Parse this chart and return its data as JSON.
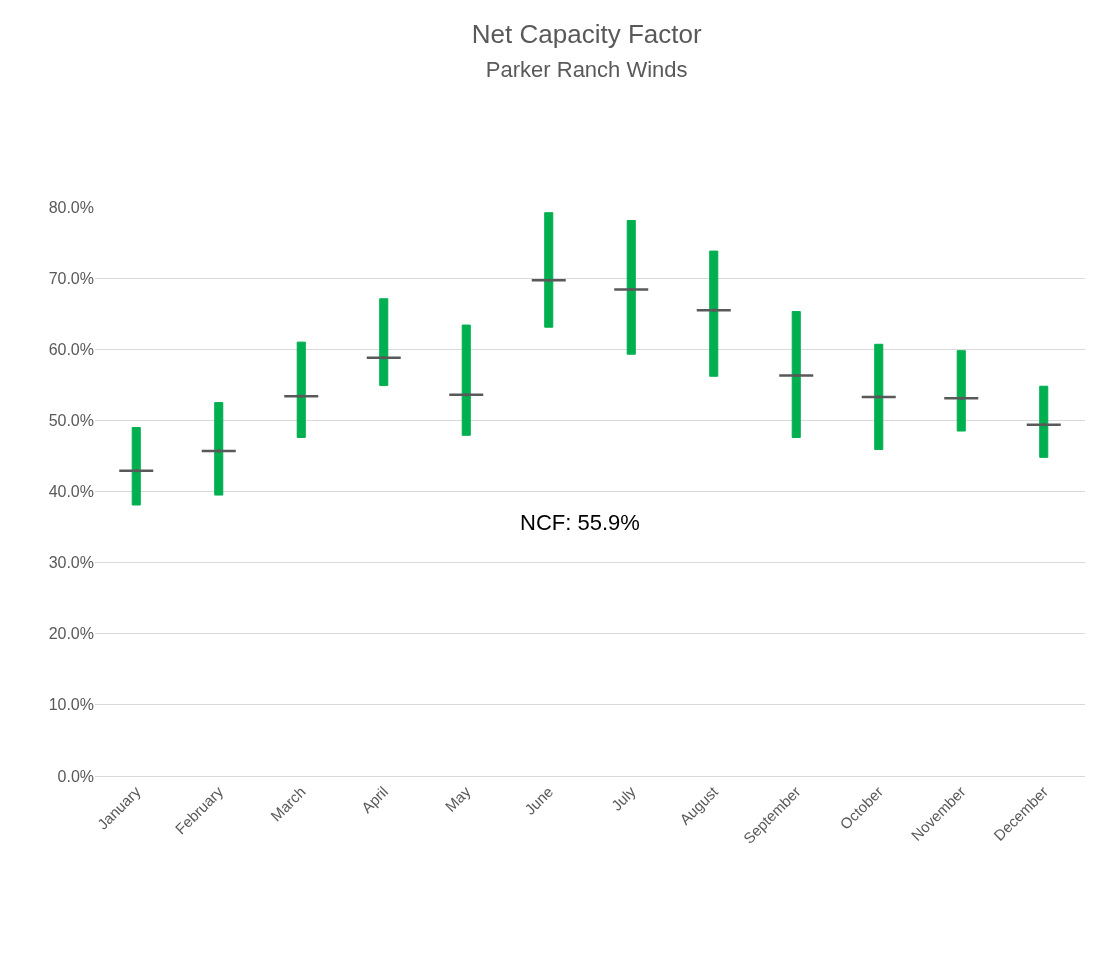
{
  "chart_data": {
    "type": "candlestick",
    "title": "Net Capacity Factor",
    "subtitle": "Parker Ranch Winds",
    "categories": [
      "January",
      "February",
      "March",
      "April",
      "May",
      "June",
      "July",
      "August",
      "September",
      "October",
      "November",
      "December"
    ],
    "ohlc": [
      [
        38.1,
        49.0,
        38.1,
        49.0
      ],
      [
        39.5,
        52.5,
        39.5,
        52.5
      ],
      [
        47.6,
        61.0,
        47.6,
        61.0
      ],
      [
        54.9,
        67.1,
        54.9,
        67.1
      ],
      [
        47.9,
        63.4,
        47.9,
        63.4
      ],
      [
        63.1,
        79.2,
        63.1,
        79.2
      ],
      [
        59.3,
        78.1,
        59.3,
        78.1
      ],
      [
        56.2,
        73.8,
        56.2,
        73.8
      ],
      [
        47.6,
        65.3,
        47.6,
        65.3
      ],
      [
        45.9,
        60.7,
        45.9,
        60.7
      ],
      [
        48.5,
        59.8,
        48.5,
        59.8
      ],
      [
        44.8,
        54.8,
        44.8,
        54.8
      ]
    ],
    "color": "#00b050",
    "series": [
      {
        "type": "scatter",
        "color": "#595959",
        "values": [
          42.9,
          45.7,
          53.4,
          58.8,
          53.6,
          69.7,
          68.4,
          65.5,
          56.3,
          53.3,
          53.1,
          49.4
        ],
        "errors": [
          0,
          0,
          0,
          0,
          0,
          0,
          0,
          0,
          0,
          0,
          0,
          0
        ]
      }
    ],
    "ylim": [
      0,
      80
    ],
    "yticks": [
      {
        "value": 0,
        "label": "0.0%"
      },
      {
        "value": 10,
        "label": "10.0%"
      },
      {
        "value": 20,
        "label": "20.0%"
      },
      {
        "value": 30,
        "label": "30.0%"
      },
      {
        "value": 40,
        "label": "40.0%"
      },
      {
        "value": 50,
        "label": "50.0%"
      },
      {
        "value": 60,
        "label": "60.0%"
      },
      {
        "value": 70,
        "label": "70.0%"
      },
      {
        "value": 80,
        "label": "80.0%"
      }
    ],
    "grid": "y",
    "annotations": [
      "NCF: 55.9%"
    ]
  }
}
